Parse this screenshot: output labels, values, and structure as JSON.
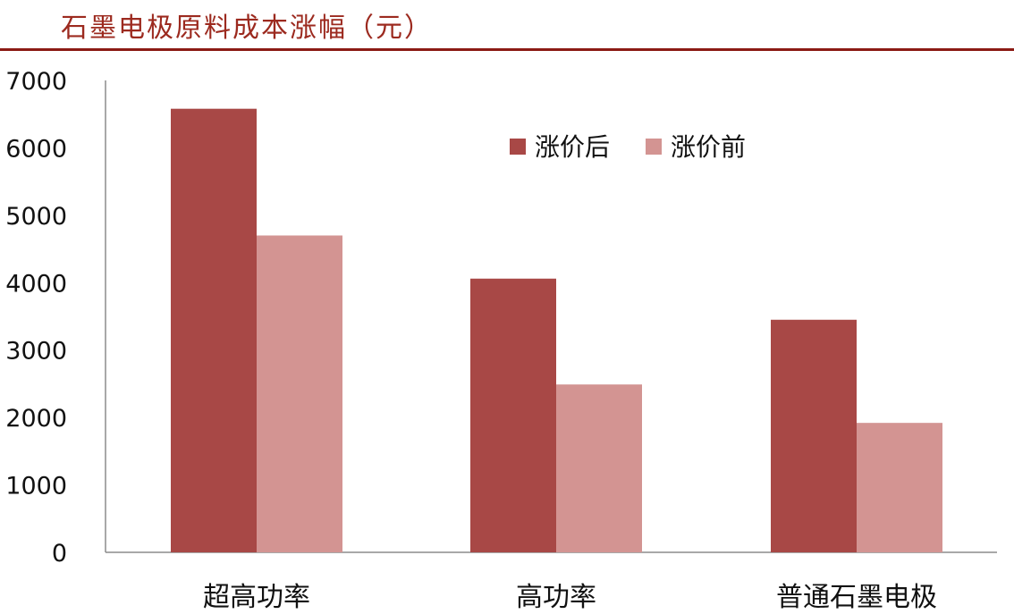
{
  "header": {
    "title": "石墨电极原料成本涨幅（元）",
    "accent_color": "#9c2a1f"
  },
  "chart_data": {
    "type": "bar",
    "title": "石墨电极原料成本涨幅（元）",
    "xlabel": "",
    "ylabel": "",
    "categories": [
      "超高功率",
      "高功率",
      "普通石墨电极"
    ],
    "series": [
      {
        "name": "涨价后",
        "values": [
          6580,
          4060,
          3450
        ],
        "color": "#a84846"
      },
      {
        "name": "涨价前",
        "values": [
          4700,
          2490,
          1920
        ],
        "color": "#d39492"
      }
    ],
    "ylim": [
      0,
      7000
    ],
    "yticks": [
      0,
      1000,
      2000,
      3000,
      4000,
      5000,
      6000,
      7000
    ],
    "grid": false,
    "legend_position": "top-right"
  }
}
